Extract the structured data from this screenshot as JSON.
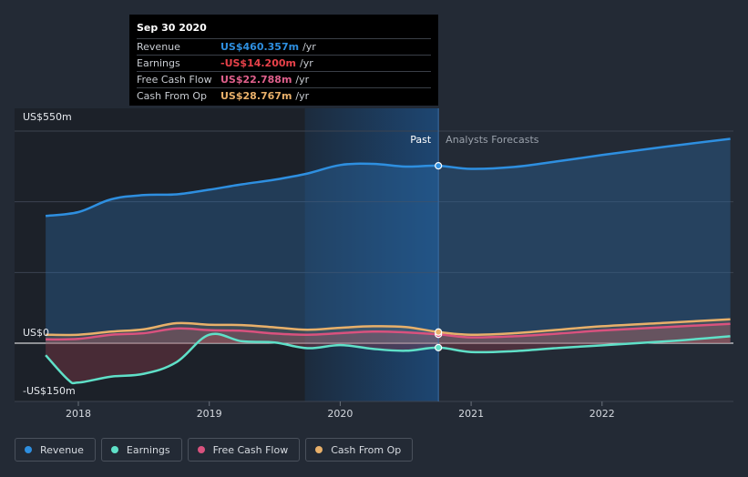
{
  "tooltip": {
    "date": "Sep 30 2020",
    "rows": [
      {
        "name": "Revenue",
        "value": "US$460.357m",
        "unit": "/yr",
        "color": "#2e8fe0"
      },
      {
        "name": "Earnings",
        "value": "-US$14.200m",
        "unit": "/yr",
        "color": "#e8424a"
      },
      {
        "name": "Free Cash Flow",
        "value": "US$22.788m",
        "unit": "/yr",
        "color": "#e0608c"
      },
      {
        "name": "Cash From Op",
        "value": "US$28.767m",
        "unit": "/yr",
        "color": "#e8b06a"
      }
    ]
  },
  "zones": {
    "past": "Past",
    "forecast": "Analysts Forecasts"
  },
  "legend": [
    {
      "label": "Revenue",
      "color": "#2e8fe0"
    },
    {
      "label": "Earnings",
      "color": "#5fe0c8"
    },
    {
      "label": "Free Cash Flow",
      "color": "#d9527e"
    },
    {
      "label": "Cash From Op",
      "color": "#e8b06a"
    }
  ],
  "chart_data": {
    "type": "area",
    "y_ticks": [
      {
        "value": 550,
        "label": "US$550m"
      },
      {
        "value": 0,
        "label": "US$0"
      },
      {
        "value": -150,
        "label": "-US$150m"
      }
    ],
    "ylim": [
      -150,
      550
    ],
    "xlim": [
      2017.75,
      2022.98
    ],
    "x_ticks": [
      {
        "value": 2018,
        "label": "2018"
      },
      {
        "value": 2019,
        "label": "2019"
      },
      {
        "value": 2020,
        "label": "2020"
      },
      {
        "value": 2021,
        "label": "2021"
      },
      {
        "value": 2022,
        "label": "2022"
      }
    ],
    "past_end": 2020.75,
    "highlight_start": 2019.73,
    "series": [
      {
        "name": "Revenue",
        "color": "#2e8fe0",
        "points": [
          [
            2017.75,
            330
          ],
          [
            2018.0,
            340
          ],
          [
            2018.25,
            373
          ],
          [
            2018.5,
            384
          ],
          [
            2018.75,
            386
          ],
          [
            2019.0,
            398
          ],
          [
            2019.25,
            412
          ],
          [
            2019.5,
            424
          ],
          [
            2019.75,
            440
          ],
          [
            2020.0,
            462
          ],
          [
            2020.25,
            465
          ],
          [
            2020.5,
            458
          ],
          [
            2020.75,
            460
          ],
          [
            2021.0,
            452
          ],
          [
            2021.33,
            457
          ],
          [
            2021.67,
            472
          ],
          [
            2022.0,
            488
          ],
          [
            2022.5,
            510
          ],
          [
            2022.98,
            530
          ]
        ]
      },
      {
        "name": "Earnings",
        "color": "#5fe0c8",
        "points": [
          [
            2017.75,
            -38
          ],
          [
            2017.92,
            -115
          ],
          [
            2018.0,
            -125
          ],
          [
            2018.25,
            -106
          ],
          [
            2018.5,
            -97
          ],
          [
            2018.75,
            -60
          ],
          [
            2019.0,
            22
          ],
          [
            2019.25,
            5
          ],
          [
            2019.5,
            2
          ],
          [
            2019.75,
            -16
          ],
          [
            2020.0,
            -6
          ],
          [
            2020.25,
            -18
          ],
          [
            2020.5,
            -24
          ],
          [
            2020.75,
            -14
          ],
          [
            2021.0,
            -28
          ],
          [
            2021.33,
            -25
          ],
          [
            2021.67,
            -15
          ],
          [
            2022.0,
            -7
          ],
          [
            2022.5,
            5
          ],
          [
            2022.98,
            18
          ]
        ]
      },
      {
        "name": "Free Cash Flow",
        "color": "#d9527e",
        "points": [
          [
            2017.75,
            10
          ],
          [
            2018.0,
            11
          ],
          [
            2018.25,
            22
          ],
          [
            2018.5,
            26
          ],
          [
            2018.75,
            38
          ],
          [
            2019.0,
            34
          ],
          [
            2019.25,
            32
          ],
          [
            2019.5,
            25
          ],
          [
            2019.75,
            22
          ],
          [
            2020.0,
            26
          ],
          [
            2020.25,
            30
          ],
          [
            2020.5,
            28
          ],
          [
            2020.75,
            23
          ],
          [
            2021.0,
            15
          ],
          [
            2021.33,
            18
          ],
          [
            2021.67,
            25
          ],
          [
            2022.0,
            33
          ],
          [
            2022.5,
            42
          ],
          [
            2022.98,
            50
          ]
        ]
      },
      {
        "name": "Cash From Op",
        "color": "#e8b06a",
        "points": [
          [
            2017.75,
            22
          ],
          [
            2018.0,
            22
          ],
          [
            2018.25,
            30
          ],
          [
            2018.5,
            36
          ],
          [
            2018.75,
            52
          ],
          [
            2019.0,
            48
          ],
          [
            2019.25,
            47
          ],
          [
            2019.5,
            41
          ],
          [
            2019.75,
            35
          ],
          [
            2020.0,
            40
          ],
          [
            2020.25,
            44
          ],
          [
            2020.5,
            42
          ],
          [
            2020.75,
            29
          ],
          [
            2021.0,
            22
          ],
          [
            2021.33,
            26
          ],
          [
            2021.67,
            35
          ],
          [
            2022.0,
            44
          ],
          [
            2022.5,
            53
          ],
          [
            2022.98,
            62
          ]
        ]
      }
    ]
  }
}
